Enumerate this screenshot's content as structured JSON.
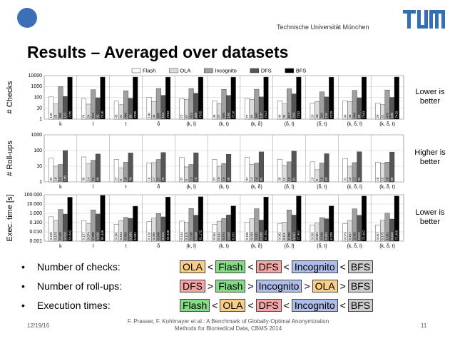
{
  "header": {
    "institution": "Technische Universität München"
  },
  "title": "Results – Averaged over datasets",
  "chart_data": [
    {
      "type": "bar",
      "ylabel": "# Checks",
      "note": "Lower is better",
      "log_scale": true,
      "grid": true,
      "categories": [
        "k",
        "l",
        "t",
        "δ",
        "(k, l)",
        "(k, t)",
        "(k, δ)",
        "(δ, l)",
        "(δ, t)",
        "(k, δ, l)",
        "(k, δ, t)"
      ],
      "ylim": [
        1,
        10000
      ],
      "yticks": [
        1,
        10,
        100,
        1000,
        10000
      ],
      "series": [
        {
          "name": "Flash",
          "color": "#ffffff",
          "values": [
            110,
            74,
            45,
            100,
            73,
            45,
            77,
            49,
            29,
            49,
            29
          ]
        },
        {
          "name": "OLA",
          "color": "#dddddd",
          "values": [
            25,
            24,
            21,
            43,
            67,
            27,
            65,
            25,
            40,
            43,
            21
          ]
        },
        {
          "name": "Incognito",
          "color": "#a0a0a0",
          "values": [
            980,
            510,
            406,
            660,
            652,
            550,
            560,
            617,
            320,
            440,
            478
          ]
        },
        {
          "name": "DFS",
          "color": "#555555",
          "values": [
            122,
            92,
            83,
            154,
            238,
            150,
            110,
            210,
            110,
            92,
            100
          ]
        },
        {
          "name": "BFS",
          "color": "#000000",
          "values": [
            7286,
            7340,
            7385,
            7283,
            7355,
            7216,
            7347,
            7382,
            7229,
            7383,
            7429
          ]
        }
      ]
    },
    {
      "type": "bar",
      "ylabel": "# Roll-ups",
      "note": "Higher is better",
      "log_scale": true,
      "grid": true,
      "categories": [
        "k",
        "l",
        "t",
        "δ",
        "(k, l)",
        "(k, t)",
        "(k, δ)",
        "(δ, l)",
        "(δ, t)",
        "(k, δ, l)",
        "(k, δ, t)"
      ],
      "ylim": [
        1,
        1000
      ],
      "yticks": [
        1,
        10,
        100,
        1000
      ],
      "series": [
        {
          "name": "Flash",
          "color": "#ffffff",
          "values": [
            32,
            39,
            27,
            16,
            37,
            27,
            37,
            28,
            19,
            31,
            18
          ]
        },
        {
          "name": "OLA",
          "color": "#dddddd",
          "values": [
            10,
            14,
            8,
            17,
            9,
            10,
            13,
            11,
            6,
            10,
            15
          ]
        },
        {
          "name": "Incognito",
          "color": "#a0a0a0",
          "values": [
            13,
            24,
            18,
            27,
            13,
            15,
            16,
            19,
            16,
            17,
            18
          ]
        },
        {
          "name": "DFS",
          "color": "#555555",
          "values": [
            100,
            60,
            70,
            75,
            72,
            58,
            82,
            91,
            63,
            84,
            80
          ]
        },
        {
          "name": "BFS",
          "color": "#000000",
          "values": [
            1,
            1,
            1,
            1,
            1,
            1,
            1,
            1,
            1,
            1,
            1
          ]
        }
      ]
    },
    {
      "type": "bar",
      "ylabel": "Exec. time [s]",
      "note": "Lower is better",
      "log_scale": true,
      "grid": true,
      "categories": [
        "k",
        "l",
        "t",
        "δ",
        "(k, l)",
        "(k, t)",
        "(k, δ)",
        "(δ, l)",
        "(δ, t)",
        "(k, δ, l)",
        "(k, δ, t)"
      ],
      "ylim": [
        0.001,
        100
      ],
      "yticks": [
        {
          "value": 0.001,
          "label": "0.001"
        },
        {
          "value": 0.01,
          "label": "0.010"
        },
        {
          "value": 0.1,
          "label": "0.100"
        },
        {
          "value": 1,
          "label": "1.000"
        },
        {
          "value": 10,
          "label": "10.000"
        },
        {
          "value": 100,
          "label": "100.000"
        }
      ],
      "series": [
        {
          "name": "Flash",
          "color": "#ffffff",
          "values": [
            0.42,
            0.157,
            0.066,
            0.126,
            0.144,
            0.064,
            0.106,
            0.082,
            0.056,
            0.079,
            0.057
          ],
          "value_labels": [
            "0.420",
            "0.157",
            "0.066",
            "0.126",
            "0.144",
            "0.064",
            "0.106",
            "0.082",
            "0.056",
            "0.079",
            "0.057"
          ]
        },
        {
          "name": "OLA",
          "color": "#dddddd",
          "values": [
            0.173,
            0.074,
            0.154,
            0.305,
            0.11,
            0.141,
            0.259,
            0.111,
            0.091,
            0.167,
            0.175
          ],
          "value_labels": [
            "0.173",
            "0.074",
            "0.154",
            "0.305",
            "0.110",
            "0.141",
            "0.259",
            "0.111",
            "0.091",
            "0.167",
            "0.175"
          ]
        },
        {
          "name": "Incognito",
          "color": "#a0a0a0",
          "values": [
            2.598,
            2.308,
            0.369,
            0.948,
            3.298,
            0.274,
            3.131,
            2.336,
            0.346,
            3.009,
            1.051
          ],
          "value_labels": [
            "2.598",
            "2.308",
            "0.369",
            "0.948",
            "3.298",
            "0.274",
            "3.131",
            "2.336",
            "0.346",
            "3.009",
            "1.051"
          ]
        },
        {
          "name": "DFS",
          "color": "#555555",
          "values": [
            0.818,
            0.836,
            0.286,
            0.415,
            0.628,
            0.658,
            0.186,
            0.647,
            0.261,
            0.612,
            0.242
          ],
          "value_labels": [
            "0.818",
            "0.836",
            "0.286",
            "0.415",
            "0.628",
            "0.658",
            "0.186",
            "0.647",
            "0.261",
            "0.612",
            "0.242"
          ]
        },
        {
          "name": "BFS",
          "color": "#000000",
          "values": [
            53.842,
            85.449,
            5.831,
            56.948,
            61.172,
            6.252,
            57.201,
            72.967,
            6.22,
            73.497,
            72.96
          ],
          "value_labels": [
            "53.842",
            "85.449",
            "5.831",
            "56.948",
            "61.172",
            "6.252",
            "57.201",
            "72.967",
            "6.220",
            "73.497",
            "72.960"
          ]
        }
      ]
    }
  ],
  "bullets": [
    {
      "label": "Number of checks:",
      "items": [
        {
          "text": "OLA",
          "color": "#f7cf86"
        },
        {
          "text": "<"
        },
        {
          "text": "Flash",
          "color": "#86dc86"
        },
        {
          "text": "<"
        },
        {
          "text": "DFS",
          "color": "#f4a6a6"
        },
        {
          "text": "<"
        },
        {
          "text": "Incognito",
          "color": "#aebde9"
        },
        {
          "text": "<"
        },
        {
          "text": "BFS",
          "color": "#cccccc"
        }
      ]
    },
    {
      "label": "Number of roll-ups:",
      "items": [
        {
          "text": "DFS",
          "color": "#f4a6a6"
        },
        {
          "text": ">"
        },
        {
          "text": "Flash",
          "color": "#86dc86"
        },
        {
          "text": ">"
        },
        {
          "text": "Incognito",
          "color": "#aebde9"
        },
        {
          "text": ">"
        },
        {
          "text": "OLA",
          "color": "#f7cf86"
        },
        {
          "text": ">"
        },
        {
          "text": "BFS",
          "color": "#cccccc"
        }
      ]
    },
    {
      "label": "Execution times:",
      "items": [
        {
          "text": "Flash",
          "color": "#86dc86"
        },
        {
          "text": "<"
        },
        {
          "text": "OLA",
          "color": "#f7cf86"
        },
        {
          "text": "<"
        },
        {
          "text": "DFS",
          "color": "#f4a6a6"
        },
        {
          "text": "<"
        },
        {
          "text": "Incognito",
          "color": "#aebde9"
        },
        {
          "text": "<"
        },
        {
          "text": "BFS",
          "color": "#cccccc"
        }
      ]
    }
  ],
  "footer": {
    "date": "12/19/16",
    "citation": [
      "F. Prasser, F. Kohlmayer et al.: A Benchmark of Globally-Optimal Anonymization",
      "Methods for Biomedical Data, CBMS 2014"
    ],
    "page": "11"
  }
}
